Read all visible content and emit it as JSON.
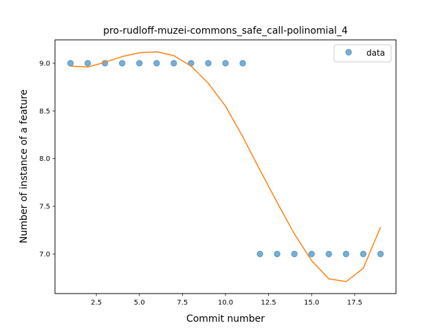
{
  "chart_data": {
    "type": "scatter",
    "title": "pro-rudloff-muzei-commons_safe_call-polinomial_4",
    "xlabel": "Commit number",
    "ylabel": "Number of instance of a feature",
    "xlim": [
      0.1,
      19.9
    ],
    "ylim": [
      6.585,
      9.245
    ],
    "xticks": [
      2.5,
      5.0,
      7.5,
      10.0,
      12.5,
      15.0,
      17.5
    ],
    "xtick_labels": [
      "2.5",
      "5.0",
      "7.5",
      "10.0",
      "12.5",
      "15.0",
      "17.5"
    ],
    "yticks": [
      7.0,
      7.5,
      8.0,
      8.5,
      9.0
    ],
    "ytick_labels": [
      "7.0",
      "7.5",
      "8.0",
      "8.5",
      "9.0"
    ],
    "grid": false,
    "legend_position": "top-right",
    "series": [
      {
        "name": "data",
        "kind": "scatter",
        "color": "#1f77b4",
        "x": [
          1,
          2,
          3,
          4,
          5,
          6,
          7,
          8,
          9,
          10,
          11,
          12,
          13,
          14,
          15,
          16,
          17,
          18,
          19
        ],
        "y": [
          9,
          9,
          9,
          9,
          9,
          9,
          9,
          9,
          9,
          9,
          9,
          7,
          7,
          7,
          7,
          7,
          7,
          7,
          7
        ]
      },
      {
        "kind": "line",
        "color": "#ff7f0e",
        "x": [
          1,
          2,
          3,
          4,
          5,
          6,
          7,
          8,
          9,
          10,
          11,
          12,
          13,
          14,
          15,
          16,
          17,
          18,
          19
        ],
        "y": [
          8.97,
          8.96,
          9.01,
          9.07,
          9.11,
          9.12,
          9.08,
          8.97,
          8.79,
          8.55,
          8.23,
          7.88,
          7.54,
          7.21,
          6.93,
          6.74,
          6.71,
          6.85,
          7.28
        ]
      }
    ]
  }
}
